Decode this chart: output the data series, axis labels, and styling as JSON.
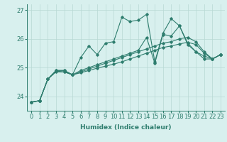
{
  "xlabel": "Humidex (Indice chaleur)",
  "x_values": [
    0,
    1,
    2,
    3,
    4,
    5,
    6,
    7,
    8,
    9,
    10,
    11,
    12,
    13,
    14,
    15,
    16,
    17,
    18,
    19,
    20,
    21,
    22,
    23
  ],
  "lines": [
    [
      23.8,
      23.85,
      24.6,
      24.9,
      24.9,
      24.75,
      25.35,
      25.75,
      25.45,
      25.85,
      25.9,
      26.75,
      26.6,
      26.65,
      26.85,
      25.2,
      26.2,
      26.7,
      26.45,
      25.8,
      25.55,
      25.4,
      25.3,
      25.45
    ],
    [
      23.8,
      23.85,
      24.6,
      24.9,
      24.9,
      24.75,
      24.9,
      25.0,
      25.1,
      25.2,
      25.3,
      25.4,
      25.5,
      25.6,
      26.05,
      25.15,
      26.15,
      26.1,
      26.45,
      25.85,
      25.55,
      25.3,
      25.3,
      25.45
    ],
    [
      23.8,
      23.85,
      24.6,
      24.88,
      24.85,
      24.75,
      24.85,
      24.95,
      25.05,
      25.15,
      25.25,
      25.35,
      25.45,
      25.55,
      25.65,
      25.75,
      25.85,
      25.9,
      26.0,
      26.05,
      25.9,
      25.55,
      25.3,
      25.45
    ],
    [
      23.8,
      23.85,
      24.6,
      24.85,
      24.85,
      24.75,
      24.82,
      24.9,
      24.98,
      25.05,
      25.12,
      25.2,
      25.3,
      25.4,
      25.5,
      25.6,
      25.7,
      25.75,
      25.82,
      25.88,
      25.8,
      25.5,
      25.3,
      25.45
    ]
  ],
  "line_color": "#2e7d6e",
  "bg_color": "#d8f0ee",
  "grid_color": "#b8d8d4",
  "ylim": [
    23.5,
    27.2
  ],
  "yticks": [
    24,
    25,
    26,
    27
  ],
  "marker": "D",
  "marker_size": 1.8,
  "line_width": 0.8,
  "axis_label_fontsize": 6.5,
  "tick_fontsize": 6.0
}
